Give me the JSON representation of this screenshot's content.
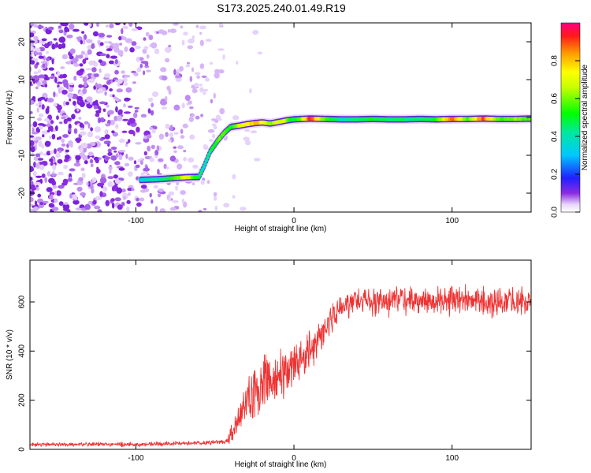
{
  "title": "S173.2025.240.01.49.R19",
  "chart_data": [
    {
      "type": "heatmap",
      "title": "S173.2025.240.01.49.R19",
      "xlabel": "Height of straight line (km)",
      "ylabel": "Frequency (Hz)",
      "xlim": [
        -167,
        150
      ],
      "ylim": [
        -25,
        25
      ],
      "xticks": [
        -100,
        0,
        100
      ],
      "xtick_labels": [
        "-100",
        "0",
        "100"
      ],
      "yticks": [
        -20,
        -10,
        0,
        10,
        20
      ],
      "ytick_labels": [
        "-20",
        "-10",
        "0",
        "10",
        "20"
      ],
      "colorbar": {
        "label": "Normalized spectral amplitude",
        "range": [
          0,
          1
        ],
        "ticks": [
          0.0,
          0.2,
          0.4,
          0.6,
          0.8
        ],
        "tick_labels": [
          "0.0",
          "0.2",
          "0.4",
          "0.6",
          "0.8"
        ]
      },
      "ridge": {
        "heights_km": [
          -97,
          -85,
          -75,
          -68,
          -60,
          -57,
          -53,
          -48,
          -44,
          -40,
          -35,
          -30,
          -25,
          -20,
          -15,
          -10,
          -5,
          0,
          5,
          10,
          20,
          30,
          40,
          50,
          60,
          70,
          80,
          90,
          100,
          110,
          120,
          130,
          140,
          150
        ],
        "freq_hz": [
          -16.5,
          -16.3,
          -16.0,
          -15.8,
          -15.7,
          -13,
          -9,
          -6,
          -4,
          -2.5,
          -2.2,
          -1.8,
          -1.5,
          -1.3,
          -1.6,
          -1.2,
          -0.8,
          -0.5,
          -0.4,
          -0.3,
          -0.4,
          -0.5,
          -0.5,
          -0.4,
          -0.5,
          -0.5,
          -0.4,
          -0.5,
          -0.4,
          -0.4,
          -0.3,
          -0.4,
          -0.4,
          -0.3
        ],
        "amplitude": [
          0.35,
          0.4,
          0.55,
          0.7,
          0.5,
          0.35,
          0.45,
          0.55,
          0.6,
          0.5,
          0.65,
          0.75,
          0.8,
          0.75,
          0.6,
          0.7,
          0.65,
          0.45,
          0.6,
          0.95,
          0.55,
          0.4,
          0.45,
          0.5,
          0.45,
          0.45,
          0.45,
          0.5,
          0.9,
          0.55,
          0.9,
          0.55,
          0.6,
          0.55
        ]
      }
    },
    {
      "type": "line",
      "series": [
        {
          "name": "SNR",
          "color": "#ef3333"
        }
      ],
      "xlabel": "Height of straight line (km)",
      "ylabel": "SNR (10 * v/v)",
      "xlim": [
        -167,
        150
      ],
      "ylim": [
        0,
        770
      ],
      "xticks": [
        -100,
        0,
        100
      ],
      "xtick_labels": [
        "-100",
        "0",
        "100"
      ],
      "yticks": [
        0,
        200,
        400,
        600
      ],
      "ytick_labels": [
        "0",
        "200",
        "400",
        "600"
      ],
      "trend": {
        "x": [
          -167,
          -100,
          -60,
          -50,
          -43,
          -40,
          -35,
          -30,
          -25,
          -20,
          -10,
          0,
          10,
          20,
          25,
          30,
          40,
          60,
          80,
          100,
          120,
          150
        ],
        "y": [
          20,
          20,
          25,
          30,
          30,
          60,
          120,
          200,
          240,
          260,
          290,
          340,
          400,
          480,
          550,
          580,
          600,
          605,
          600,
          610,
          600,
          600
        ]
      },
      "noise_amplitude": {
        "x": [
          -167,
          -45,
          -40,
          -30,
          -20,
          0,
          20,
          30,
          150
        ],
        "y": [
          10,
          12,
          40,
          110,
          130,
          110,
          90,
          70,
          70
        ]
      }
    }
  ]
}
